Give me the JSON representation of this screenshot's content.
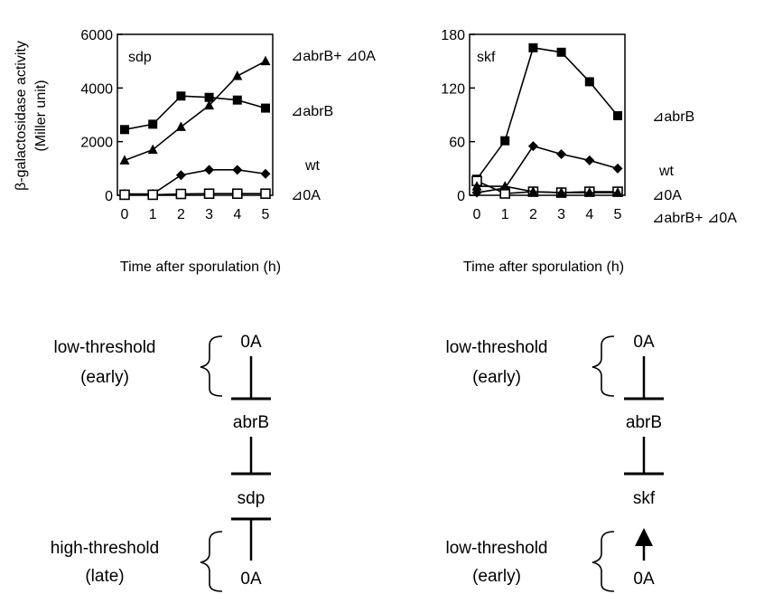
{
  "figure": {
    "ylabel_line1": "β-galactosidase activity",
    "ylabel_line2": "(Miller unit)"
  },
  "chart_data": [
    {
      "type": "line",
      "panel_label": "sdp",
      "xlabel": "Time after sporulation (h)",
      "x": [
        0,
        1,
        2,
        3,
        4,
        5
      ],
      "xlim": [
        0,
        5
      ],
      "ylim": [
        0,
        6000
      ],
      "yticks": [
        0,
        2000,
        4000,
        6000
      ],
      "grid": false,
      "series": [
        {
          "name": "⊿abrB+ ⊿0A",
          "marker": "triangle",
          "values": [
            1300,
            1700,
            2550,
            3350,
            4450,
            5000
          ]
        },
        {
          "name": "⊿abrB",
          "marker": "square-filled",
          "values": [
            2450,
            2650,
            3700,
            3650,
            3550,
            3250
          ]
        },
        {
          "name": "wt",
          "marker": "diamond",
          "values": [
            50,
            50,
            750,
            950,
            950,
            800
          ]
        },
        {
          "name": "⊿0A",
          "marker": "square-open",
          "values": [
            20,
            20,
            50,
            60,
            60,
            60
          ]
        }
      ]
    },
    {
      "type": "line",
      "panel_label": "skf",
      "xlabel": "Time after sporulation (h)",
      "x": [
        0,
        1,
        2,
        3,
        4,
        5
      ],
      "xlim": [
        0,
        5
      ],
      "ylim": [
        0,
        180
      ],
      "yticks": [
        0,
        60,
        120,
        180
      ],
      "grid": false,
      "series": [
        {
          "name": "⊿abrB",
          "marker": "square-filled",
          "values": [
            18,
            61,
            165,
            160,
            127,
            89
          ]
        },
        {
          "name": "wt",
          "marker": "diamond",
          "values": [
            3,
            8,
            55,
            46,
            39,
            30
          ]
        },
        {
          "name": "⊿0A",
          "marker": "square-open",
          "values": [
            16,
            2,
            4,
            3,
            4,
            4
          ]
        },
        {
          "name": "⊿abrB+ ⊿0A",
          "marker": "triangle",
          "values": [
            10,
            10,
            4,
            3,
            3,
            3
          ]
        }
      ]
    }
  ],
  "diagrams": {
    "sdp": {
      "top_brace_line1": "low-threshold",
      "top_brace_line2": "(early)",
      "bottom_brace_line1": "high-threshold",
      "bottom_brace_line2": "(late)",
      "node_top": "0A",
      "node_mid": "abrB",
      "node_target": "sdp",
      "node_bottom": "0A"
    },
    "skf": {
      "top_brace_line1": "low-threshold",
      "top_brace_line2": "(early)",
      "bottom_brace_line1": "low-threshold",
      "bottom_brace_line2": "(early)",
      "node_top": "0A",
      "node_mid": "abrB",
      "node_target": "skf",
      "node_bottom": "0A"
    }
  }
}
